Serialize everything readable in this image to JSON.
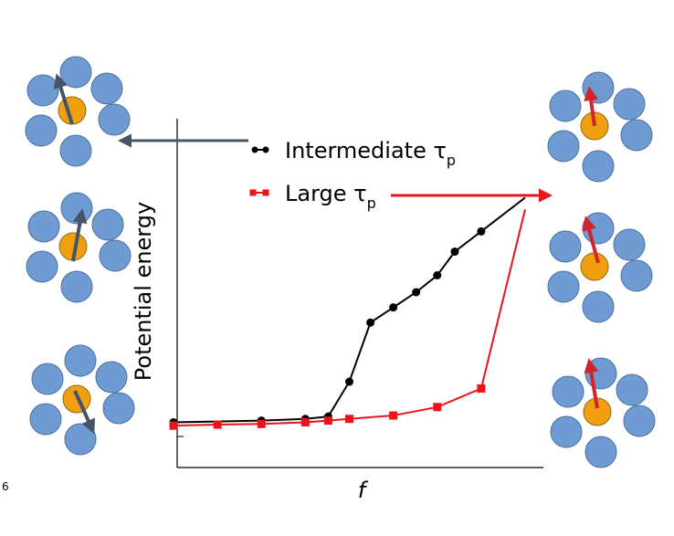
{
  "chart_data": {
    "type": "line",
    "title": "",
    "xlabel": "f",
    "ylabel": "Potential energy",
    "x_ticks_shown": false,
    "y_ticks_shown": false,
    "grid": false,
    "legend_position": "top",
    "xlim": [
      0,
      1
    ],
    "ylim": [
      0,
      1
    ],
    "series": [
      {
        "name": "Intermediate τp",
        "name_main": "Intermediate τ",
        "name_sub": "p",
        "color": "#000000",
        "marker": "circle",
        "x": [
          0.0,
          0.25,
          0.375,
          0.44,
          0.5,
          0.56,
          0.625,
          0.69,
          0.75,
          0.8,
          0.875
        ],
        "y": [
          0.115,
          0.12,
          0.125,
          0.132,
          0.235,
          0.41,
          0.455,
          0.5,
          0.55,
          0.62,
          0.68
        ],
        "extension": {
          "x": [
            0.875,
            1.0
          ],
          "y": [
            0.68,
            0.78
          ]
        }
      },
      {
        "name": "Large τp",
        "name_main": "Large τ",
        "name_sub": "p",
        "color": "#e8141b",
        "marker": "square",
        "x": [
          0.0,
          0.125,
          0.25,
          0.375,
          0.44,
          0.5,
          0.625,
          0.75,
          0.875
        ],
        "y": [
          0.105,
          0.108,
          0.11,
          0.115,
          0.12,
          0.125,
          0.135,
          0.16,
          0.215
        ],
        "extension": {
          "x": [
            0.875,
            1.0
          ],
          "y": [
            0.215,
            0.745
          ]
        }
      }
    ],
    "annotations": {
      "left_arrow_color": "#475366",
      "right_arrow_color": "#e8141b",
      "particle_color": "#6f9bd3",
      "central_particle_color": "#f0a00f",
      "left_cluster_arrow_color": "#475366",
      "right_cluster_arrow_color": "#d3232b",
      "edge_mark": "6"
    }
  }
}
